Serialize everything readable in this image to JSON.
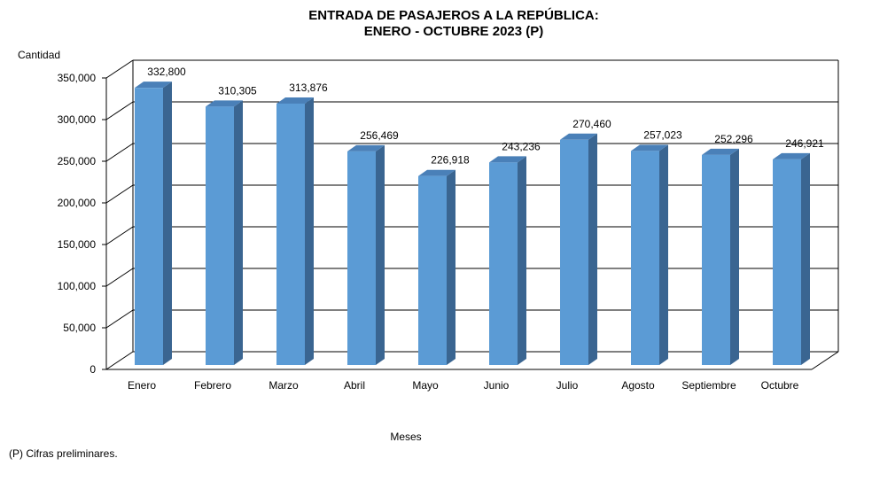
{
  "chart_data": {
    "type": "bar",
    "title_line1": "ENTRADA DE PASAJEROS A LA REPÚBLICA:",
    "title_line2": "ENERO - OCTUBRE 2023 (P)",
    "ylabel": "Cantidad",
    "xlabel": "Meses",
    "footnote": "(P) Cifras  preliminares.",
    "categories": [
      "Enero",
      "Febrero",
      "Marzo",
      "Abril",
      "Mayo",
      "Junio",
      "Julio",
      "Agosto",
      "Septiembre",
      "Octubre"
    ],
    "values": [
      332800,
      310305,
      313876,
      256469,
      226918,
      243236,
      270460,
      257023,
      252296,
      246921
    ],
    "data_labels": [
      "332,800",
      "310,305",
      "313,876",
      "256,469",
      "226,918",
      "243,236",
      "270,460",
      "257,023",
      "252,296",
      "246,921"
    ],
    "yticks": [
      0,
      50000,
      100000,
      150000,
      200000,
      250000,
      300000,
      350000
    ],
    "ytick_labels": [
      "0",
      "50,000",
      "100,000",
      "150,000",
      "200,000",
      "250,000",
      "300,000",
      "350,000"
    ],
    "ylim": [
      0,
      350000
    ],
    "grid": true,
    "colors": {
      "front": "#5B9BD5",
      "side": "#3A6591",
      "top": "#4A80B8"
    }
  }
}
